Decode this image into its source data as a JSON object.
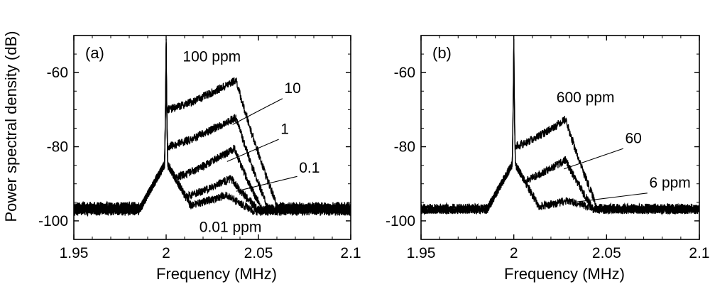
{
  "chart_data": {
    "ylabel": "Power spectral density (dB)",
    "panels": [
      {
        "type": "line",
        "label": "(a)",
        "xlabel": "Frequency (MHz)",
        "xlim": [
          1.95,
          2.1
        ],
        "ylim": [
          -105,
          -50
        ],
        "xticks": [
          1.95,
          2.0,
          2.05,
          2.1
        ],
        "xtick_labels": [
          "1.95",
          "2",
          "2.05",
          "2.1"
        ],
        "yticks": [
          -100,
          -80,
          -60
        ],
        "ytick_labels": [
          "-100",
          "-80",
          "-60"
        ],
        "carrier": {
          "freq": 2.0,
          "peak": -45
        },
        "series": [
          {
            "name": "100 ppm",
            "floor": -96,
            "start": -70,
            "peak": -62,
            "peak_x": 2.038,
            "end_x": 2.06,
            "noise": 0.7
          },
          {
            "name": "10",
            "floor": -96.5,
            "start": -80,
            "peak": -72,
            "peak_x": 2.038,
            "end_x": 2.055,
            "noise": 0.7
          },
          {
            "name": "1",
            "floor": -97,
            "start": -89,
            "peak": -80.5,
            "peak_x": 2.037,
            "end_x": 2.052,
            "noise": 0.7
          },
          {
            "name": "0.1",
            "floor": -97,
            "start": -95,
            "peak": -88.5,
            "peak_x": 2.035,
            "end_x": 2.05,
            "noise": 0.7
          },
          {
            "name": "0.01 ppm",
            "floor": -97.5,
            "start": -97,
            "peak": -93,
            "peak_x": 2.033,
            "end_x": 2.048,
            "noise": 0.7
          }
        ],
        "annotations": [
          {
            "text": "100 ppm",
            "x": 2.009,
            "y": -57,
            "anchor": "start"
          },
          {
            "text": "10",
            "x": 2.064,
            "y": -65.5,
            "anchor": "start",
            "line_from": [
              2.063,
              -67
            ],
            "line_to": [
              2.036,
              -74
            ]
          },
          {
            "text": "1",
            "x": 2.062,
            "y": -76.5,
            "anchor": "start",
            "line_from": [
              2.061,
              -78
            ],
            "line_to": [
              2.033,
              -84
            ]
          },
          {
            "text": "0.1",
            "x": 2.072,
            "y": -87,
            "anchor": "start",
            "line_from": [
              2.071,
              -88
            ],
            "line_to": [
              2.038,
              -92
            ]
          },
          {
            "text": "0.01 ppm",
            "x": 2.018,
            "y": -103,
            "anchor": "start"
          }
        ]
      },
      {
        "type": "line",
        "label": "(b)",
        "xlabel": "Frequency (MHz)",
        "xlim": [
          1.95,
          2.1
        ],
        "ylim": [
          -105,
          -50
        ],
        "xticks": [
          1.95,
          2.0,
          2.05,
          2.1
        ],
        "xtick_labels": [
          "1.95",
          "2",
          "2.05",
          "2.1"
        ],
        "yticks": [
          -100,
          -80,
          -60
        ],
        "ytick_labels": [
          "-100",
          "-80",
          "-60"
        ],
        "carrier": {
          "freq": 2.0,
          "peak": -45
        },
        "series": [
          {
            "name": "600 ppm",
            "floor": -96.5,
            "start": -80,
            "peak": -72.5,
            "peak_x": 2.028,
            "end_x": 2.045,
            "noise": 0.7
          },
          {
            "name": "60",
            "floor": -97,
            "start": -90,
            "peak": -83.5,
            "peak_x": 2.028,
            "end_x": 2.043,
            "noise": 0.7
          },
          {
            "name": "6 ppm",
            "floor": -97,
            "start": -97,
            "peak": -94.5,
            "peak_x": 2.03,
            "end_x": 2.045,
            "noise": 0.7
          }
        ],
        "annotations": [
          {
            "text": "600 ppm",
            "x": 2.023,
            "y": -68,
            "anchor": "start"
          },
          {
            "text": "60",
            "x": 2.06,
            "y": -79,
            "anchor": "start",
            "line_from": [
              2.059,
              -80.5
            ],
            "line_to": [
              2.027,
              -86
            ]
          },
          {
            "text": "6 ppm",
            "x": 2.073,
            "y": -91,
            "anchor": "start",
            "line_from": [
              2.072,
              -92.5
            ],
            "line_to": [
              2.032,
              -95
            ]
          }
        ]
      }
    ]
  }
}
